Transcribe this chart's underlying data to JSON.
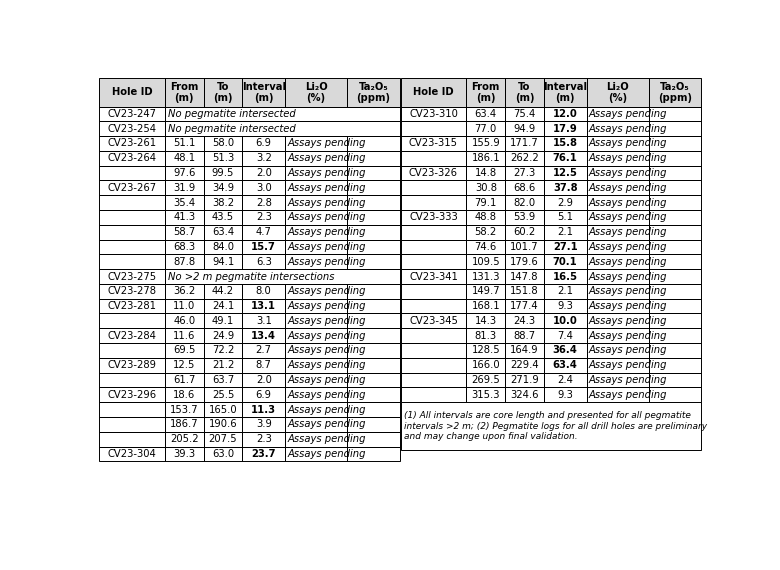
{
  "left_table": {
    "headers": [
      "Hole ID",
      "From\n(m)",
      "To\n(m)",
      "Interval\n(m)",
      "Li₂O\n(%)",
      "Ta₂O₅\n(ppm)"
    ],
    "rows": [
      [
        "CV23-247",
        "No pegmatite intersected",
        "",
        "",
        "",
        ""
      ],
      [
        "CV23-254",
        "No pegmatite intersected",
        "",
        "",
        "",
        ""
      ],
      [
        "CV23-261",
        "51.1",
        "58.0",
        "6.9",
        "Assays pending",
        ""
      ],
      [
        "CV23-264",
        "48.1",
        "51.3",
        "3.2",
        "Assays pending",
        ""
      ],
      [
        "",
        "97.6",
        "99.5",
        "2.0",
        "Assays pending",
        ""
      ],
      [
        "CV23-267",
        "31.9",
        "34.9",
        "3.0",
        "Assays pending",
        ""
      ],
      [
        "",
        "35.4",
        "38.2",
        "2.8",
        "Assays pending",
        ""
      ],
      [
        "",
        "41.3",
        "43.5",
        "2.3",
        "Assays pending",
        ""
      ],
      [
        "",
        "58.7",
        "63.4",
        "4.7",
        "Assays pending",
        ""
      ],
      [
        "",
        "68.3",
        "84.0",
        "15.7",
        "Assays pending",
        ""
      ],
      [
        "",
        "87.8",
        "94.1",
        "6.3",
        "Assays pending",
        ""
      ],
      [
        "CV23-275",
        "No >2 m pegmatite intersections",
        "",
        "",
        "",
        ""
      ],
      [
        "CV23-278",
        "36.2",
        "44.2",
        "8.0",
        "Assays pending",
        ""
      ],
      [
        "CV23-281",
        "11.0",
        "24.1",
        "13.1",
        "Assays pending",
        ""
      ],
      [
        "",
        "46.0",
        "49.1",
        "3.1",
        "Assays pending",
        ""
      ],
      [
        "CV23-284",
        "11.6",
        "24.9",
        "13.4",
        "Assays pending",
        ""
      ],
      [
        "",
        "69.5",
        "72.2",
        "2.7",
        "Assays pending",
        ""
      ],
      [
        "CV23-289",
        "12.5",
        "21.2",
        "8.7",
        "Assays pending",
        ""
      ],
      [
        "",
        "61.7",
        "63.7",
        "2.0",
        "Assays pending",
        ""
      ],
      [
        "CV23-296",
        "18.6",
        "25.5",
        "6.9",
        "Assays pending",
        ""
      ],
      [
        "",
        "153.7",
        "165.0",
        "11.3",
        "Assays pending",
        ""
      ],
      [
        "",
        "186.7",
        "190.6",
        "3.9",
        "Assays pending",
        ""
      ],
      [
        "",
        "205.2",
        "207.5",
        "2.3",
        "Assays pending",
        ""
      ],
      [
        "CV23-304",
        "39.3",
        "63.0",
        "23.7",
        "Assays pending",
        ""
      ]
    ],
    "bold_intervals": [
      "15.7",
      "13.1",
      "13.4",
      "11.3",
      "23.7"
    ]
  },
  "right_table": {
    "headers": [
      "Hole ID",
      "From\n(m)",
      "To\n(m)",
      "Interval\n(m)",
      "Li₂O\n(%)",
      "Ta₂O₅\n(ppm)"
    ],
    "rows": [
      [
        "CV23-310",
        "63.4",
        "75.4",
        "12.0",
        "Assays pending",
        ""
      ],
      [
        "",
        "77.0",
        "94.9",
        "17.9",
        "Assays pending",
        ""
      ],
      [
        "CV23-315",
        "155.9",
        "171.7",
        "15.8",
        "Assays pending",
        ""
      ],
      [
        "",
        "186.1",
        "262.2",
        "76.1",
        "Assays pending",
        ""
      ],
      [
        "CV23-326",
        "14.8",
        "27.3",
        "12.5",
        "Assays pending",
        ""
      ],
      [
        "",
        "30.8",
        "68.6",
        "37.8",
        "Assays pending",
        ""
      ],
      [
        "",
        "79.1",
        "82.0",
        "2.9",
        "Assays pending",
        ""
      ],
      [
        "CV23-333",
        "48.8",
        "53.9",
        "5.1",
        "Assays pending",
        ""
      ],
      [
        "",
        "58.2",
        "60.2",
        "2.1",
        "Assays pending",
        ""
      ],
      [
        "",
        "74.6",
        "101.7",
        "27.1",
        "Assays pending",
        ""
      ],
      [
        "",
        "109.5",
        "179.6",
        "70.1",
        "Assays pending",
        ""
      ],
      [
        "CV23-341",
        "131.3",
        "147.8",
        "16.5",
        "Assays pending",
        ""
      ],
      [
        "",
        "149.7",
        "151.8",
        "2.1",
        "Assays pending",
        ""
      ],
      [
        "",
        "168.1",
        "177.4",
        "9.3",
        "Assays pending",
        ""
      ],
      [
        "CV23-345",
        "14.3",
        "24.3",
        "10.0",
        "Assays pending",
        ""
      ],
      [
        "",
        "81.3",
        "88.7",
        "7.4",
        "Assays pending",
        ""
      ],
      [
        "",
        "128.5",
        "164.9",
        "36.4",
        "Assays pending",
        ""
      ],
      [
        "",
        "166.0",
        "229.4",
        "63.4",
        "Assays pending",
        ""
      ],
      [
        "",
        "269.5",
        "271.9",
        "2.4",
        "Assays pending",
        ""
      ],
      [
        "",
        "315.3",
        "324.6",
        "9.3",
        "Assays pending",
        ""
      ]
    ],
    "bold_intervals": [
      "12.0",
      "17.9",
      "15.8",
      "76.1",
      "12.5",
      "37.8",
      "27.1",
      "70.1",
      "16.5",
      "10.0",
      "36.4",
      "63.4"
    ]
  },
  "footnote": "(1) All intervals are core length and presented for all pegmatite\nintervals >2 m; (2) Pegmatite logs for all drill holes are preliminary\nand may change upon final validation.",
  "bg_color": "#ffffff",
  "header_bg": "#d9d9d9",
  "border_color": "#000000",
  "text_color": "#000000"
}
